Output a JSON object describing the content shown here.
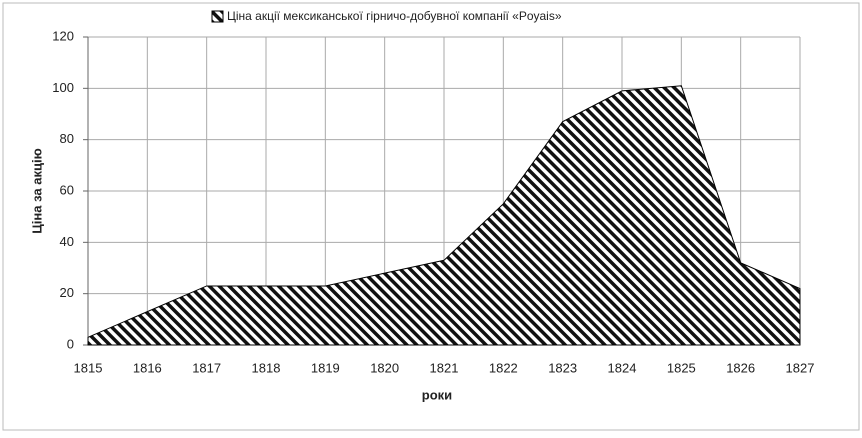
{
  "chart_data": {
    "type": "area",
    "xlabel": "роки",
    "ylabel": "Ціна за акцію",
    "categories": [
      "1815",
      "1816",
      "1817",
      "1818",
      "1819",
      "1820",
      "1821",
      "1822",
      "1823",
      "1824",
      "1825",
      "1826",
      "1827"
    ],
    "series": [
      {
        "name": "Ціна акції мексиканської гірничо-добувної компанії «Poyais»",
        "color": "#000000",
        "values": [
          3,
          13,
          23,
          23,
          23,
          28,
          33,
          55,
          87,
          99,
          101,
          32,
          22
        ]
      }
    ],
    "ylim": [
      0,
      120
    ],
    "yticks": [
      0,
      20,
      40,
      60,
      80,
      100,
      120
    ],
    "grid": true,
    "legend": "top"
  }
}
